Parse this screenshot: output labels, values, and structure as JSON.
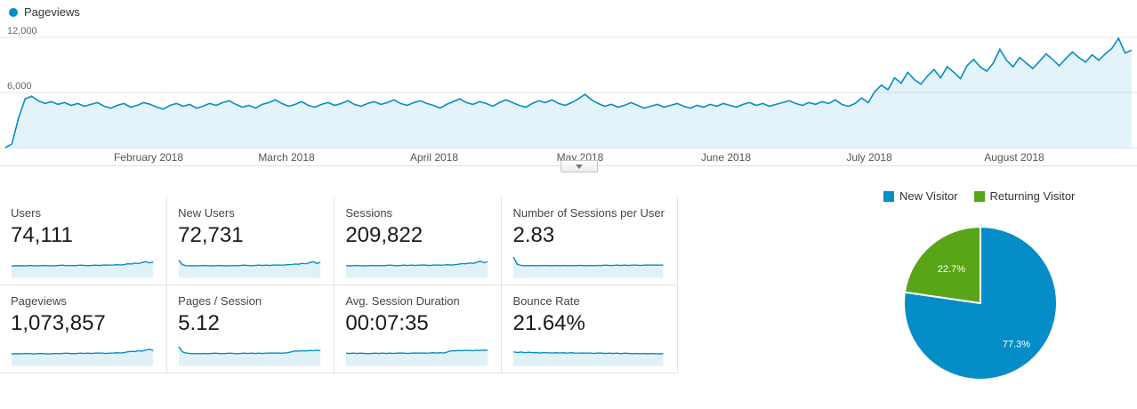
{
  "chart_data": [
    {
      "id": "pageviews-over-time",
      "type": "area",
      "title": "Pageviews",
      "color": "#058dc7",
      "fill": "rgba(5,141,199,0.11)",
      "y_axis_max": 12000,
      "y_ticks": [
        "12,000",
        "6,000"
      ],
      "x_axis_labels": [
        "February 2018",
        "March 2018",
        "April 2018",
        "May 2018",
        "June 2018",
        "July 2018",
        "August 2018"
      ],
      "values": [
        0,
        400,
        3200,
        5300,
        5600,
        5100,
        4800,
        5000,
        4700,
        4900,
        4600,
        4800,
        4500,
        4700,
        4900,
        4500,
        4300,
        4600,
        4800,
        4400,
        4600,
        4900,
        4700,
        4400,
        4200,
        4600,
        4800,
        4500,
        4700,
        4300,
        4500,
        4800,
        4600,
        4900,
        5100,
        4700,
        4400,
        4600,
        4300,
        4700,
        4900,
        5200,
        4800,
        4500,
        4700,
        5000,
        4600,
        4400,
        4700,
        4900,
        4600,
        4800,
        5100,
        4700,
        4500,
        4800,
        5000,
        4700,
        4900,
        5200,
        4800,
        4600,
        4900,
        5100,
        4800,
        4600,
        4300,
        4700,
        5000,
        5300,
        4900,
        4700,
        5000,
        4800,
        4500,
        4900,
        5200,
        4900,
        4600,
        4400,
        4800,
        5100,
        4900,
        5200,
        4800,
        4600,
        4900,
        5300,
        5800,
        5200,
        4800,
        4500,
        4700,
        4400,
        4600,
        4900,
        4600,
        4300,
        4500,
        4700,
        4400,
        4600,
        4800,
        4500,
        4300,
        4600,
        4400,
        4700,
        4500,
        4800,
        4600,
        4400,
        4700,
        4900,
        4600,
        4800,
        4500,
        4700,
        4900,
        5100,
        4800,
        4600,
        4900,
        4700,
        5000,
        4800,
        5200,
        4700,
        4500,
        4800,
        5400,
        4900,
        6100,
        6800,
        6300,
        7600,
        7000,
        8200,
        7400,
        6900,
        7800,
        8500,
        7600,
        8800,
        8200,
        7500,
        8900,
        9600,
        8800,
        8300,
        9200,
        10700,
        9500,
        8800,
        9800,
        9200,
        8600,
        9400,
        10200,
        9600,
        8900,
        9700,
        10400,
        9800,
        9300,
        10100,
        9500,
        10200,
        10800,
        11900,
        10300,
        10600
      ]
    },
    {
      "id": "visitor-type",
      "type": "pie",
      "labels": [
        "New Visitor",
        "Returning Visitor"
      ],
      "values": [
        77.3,
        22.7
      ],
      "value_labels": [
        "77.3%",
        "22.7%"
      ],
      "colors": [
        "#058dc7",
        "#58a618"
      ],
      "legend_position": "top"
    }
  ],
  "metrics": [
    {
      "label": "Users",
      "value": "74,111",
      "spark": [
        52,
        54,
        53,
        54,
        53,
        55,
        54,
        53,
        54,
        55,
        54,
        53,
        54,
        55,
        56,
        54,
        55,
        54,
        55,
        56,
        55,
        54,
        55,
        56,
        55,
        56,
        57,
        56,
        57,
        58,
        57,
        59,
        62,
        61,
        65,
        63,
        68,
        72,
        66,
        70
      ]
    },
    {
      "label": "New Users",
      "value": "72,731",
      "spark": [
        78,
        58,
        54,
        53,
        54,
        53,
        54,
        55,
        54,
        53,
        54,
        55,
        54,
        53,
        54,
        55,
        54,
        55,
        56,
        55,
        54,
        55,
        56,
        55,
        56,
        55,
        56,
        57,
        56,
        57,
        58,
        59,
        61,
        60,
        64,
        62,
        67,
        71,
        64,
        69
      ]
    },
    {
      "label": "Sessions",
      "value": "209,822",
      "spark": [
        54,
        53,
        54,
        55,
        54,
        53,
        54,
        55,
        54,
        55,
        54,
        55,
        56,
        55,
        54,
        55,
        56,
        55,
        56,
        55,
        56,
        57,
        56,
        55,
        56,
        57,
        56,
        57,
        58,
        57,
        58,
        60,
        63,
        62,
        66,
        64,
        69,
        73,
        67,
        71
      ]
    },
    {
      "label": "Number of Sessions per User",
      "value": "2.83",
      "spark": [
        92,
        60,
        55,
        54,
        54,
        55,
        54,
        54,
        55,
        54,
        54,
        55,
        54,
        55,
        54,
        55,
        54,
        55,
        55,
        54,
        55,
        54,
        55,
        55,
        56,
        55,
        55,
        56,
        55,
        56,
        55,
        56,
        56,
        55,
        56,
        57,
        56,
        57,
        56,
        57
      ]
    },
    {
      "label": "Pageviews",
      "value": "1,073,857",
      "spark": [
        53,
        54,
        53,
        54,
        55,
        54,
        53,
        54,
        55,
        54,
        53,
        54,
        55,
        54,
        55,
        56,
        55,
        54,
        55,
        56,
        55,
        56,
        55,
        56,
        57,
        56,
        55,
        56,
        57,
        58,
        57,
        59,
        62,
        64,
        63,
        67,
        65,
        70,
        74,
        68
      ]
    },
    {
      "label": "Pages / Session",
      "value": "5.12",
      "spark": [
        85,
        62,
        57,
        55,
        54,
        55,
        54,
        55,
        54,
        55,
        56,
        55,
        54,
        55,
        56,
        55,
        54,
        55,
        56,
        55,
        56,
        55,
        56,
        55,
        56,
        57,
        56,
        57,
        56,
        57,
        58,
        62,
        66,
        65,
        67,
        66,
        68,
        67,
        69,
        68
      ]
    },
    {
      "label": "Avg. Session Duration",
      "value": "00:07:35",
      "spark": [
        56,
        55,
        56,
        55,
        56,
        55,
        54,
        55,
        56,
        55,
        56,
        55,
        56,
        55,
        56,
        57,
        56,
        55,
        56,
        57,
        56,
        57,
        56,
        57,
        58,
        57,
        58,
        57,
        62,
        67,
        66,
        68,
        67,
        69,
        68,
        67,
        69,
        68,
        70,
        69
      ]
    },
    {
      "label": "Bounce Rate",
      "value": "21.64%",
      "spark": [
        62,
        59,
        61,
        58,
        60,
        58,
        59,
        57,
        59,
        58,
        57,
        58,
        57,
        58,
        56,
        58,
        57,
        56,
        57,
        56,
        57,
        55,
        57,
        56,
        55,
        56,
        55,
        56,
        54,
        56,
        55,
        54,
        55,
        54,
        55,
        53,
        55,
        54,
        53,
        54
      ]
    }
  ],
  "style": {
    "spark_line": "#058dc7",
    "spark_fill": "rgba(5,141,199,0.12)",
    "grid_color": "#e6e6e6"
  }
}
